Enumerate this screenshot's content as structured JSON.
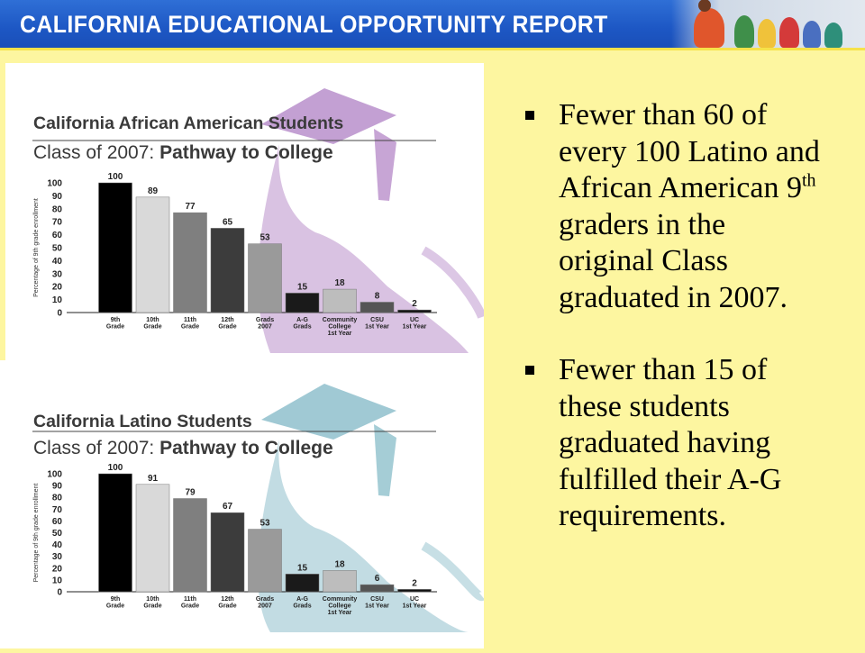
{
  "header": {
    "title": "CALIFORNIA EDUCATIONAL OPPORTUNITY REPORT",
    "colors": {
      "banner": "#1d57c4",
      "text": "#ffffff"
    }
  },
  "chart_data": [
    {
      "type": "bar",
      "title": "California African American Students",
      "subtitle_prefix": "Class of 2007:",
      "subtitle_emphasis": "Pathway to College",
      "ylabel": "Percentage of 9th grade enrollment",
      "ylim": [
        0,
        100
      ],
      "yticks": [
        0,
        10,
        20,
        30,
        40,
        50,
        60,
        70,
        80,
        90,
        100
      ],
      "categories": [
        [
          "9th",
          "Grade"
        ],
        [
          "10th",
          "Grade"
        ],
        [
          "11th",
          "Grade"
        ],
        [
          "12th",
          "Grade"
        ],
        [
          "Grads",
          "2007"
        ],
        [
          "A-G",
          "Grads"
        ],
        [
          "Community",
          "College",
          "1st Year"
        ],
        [
          "CSU",
          "1st Year"
        ],
        [
          "UC",
          "1st Year"
        ]
      ],
      "values": [
        100,
        89,
        77,
        65,
        53,
        15,
        18,
        8,
        2
      ],
      "bar_colors": [
        "#000000",
        "#d9d9d9",
        "#7f7f7f",
        "#3c3c3c",
        "#9a9a9a",
        "#1a1a1a",
        "#bdbdbd",
        "#555555",
        "#111111"
      ],
      "silhouette_color": "#b98fcb"
    },
    {
      "type": "bar",
      "title": "California Latino Students",
      "subtitle_prefix": "Class of 2007:",
      "subtitle_emphasis": "Pathway to College",
      "ylabel": "Percentage of 9th grade enrollment",
      "ylim": [
        0,
        100
      ],
      "yticks": [
        0,
        10,
        20,
        30,
        40,
        50,
        60,
        70,
        80,
        90,
        100
      ],
      "categories": [
        [
          "9th",
          "Grade"
        ],
        [
          "10th",
          "Grade"
        ],
        [
          "11th",
          "Grade"
        ],
        [
          "12th",
          "Grade"
        ],
        [
          "Grads",
          "2007"
        ],
        [
          "A-G",
          "Grads"
        ],
        [
          "Community",
          "College",
          "1st Year"
        ],
        [
          "CSU",
          "1st Year"
        ],
        [
          "UC",
          "1st Year"
        ]
      ],
      "values": [
        100,
        91,
        79,
        67,
        53,
        15,
        18,
        6,
        2
      ],
      "bar_colors": [
        "#000000",
        "#d9d9d9",
        "#7f7f7f",
        "#3c3c3c",
        "#9a9a9a",
        "#1a1a1a",
        "#bdbdbd",
        "#555555",
        "#111111"
      ],
      "silhouette_color": "#8fc0cc"
    }
  ],
  "bullets": [
    {
      "before": "Fewer than 60 of every 100 Latino and African American 9",
      "sup": "th",
      "after": " graders in the original Class graduated in 2007."
    },
    {
      "before": "Fewer than 15 of these students graduated having fulfilled their A-G requirements.",
      "sup": "",
      "after": ""
    }
  ]
}
